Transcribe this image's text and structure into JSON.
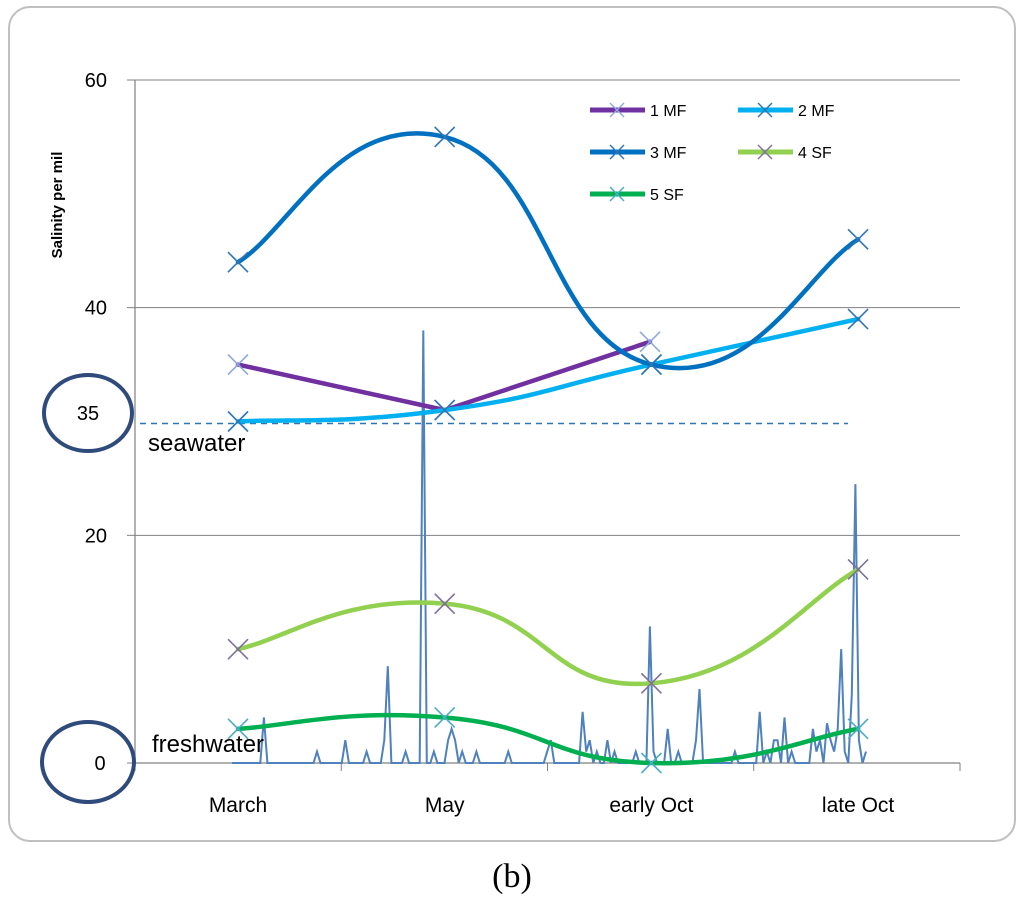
{
  "chart_data": {
    "type": "line",
    "ylabel": "Salinity per mil",
    "xlabel": "",
    "ylim": [
      0,
      60
    ],
    "yticks": [
      0,
      20,
      40,
      60
    ],
    "grid": true,
    "legend_position": "top-right",
    "categories": [
      "March",
      "May",
      "early Oct",
      "late Oct"
    ],
    "series": [
      {
        "name": "1 MF",
        "color": "#7030a0",
        "values": [
          35,
          31,
          37,
          null
        ],
        "smooth": false,
        "marker_color": "#8ea9db"
      },
      {
        "name": "2 MF",
        "color": "#00b0f0",
        "values": [
          30,
          31,
          35,
          39
        ],
        "smooth": true,
        "marker_color": "#2e75b6"
      },
      {
        "name": "3 MF",
        "color": "#0070c0",
        "values": [
          44,
          55,
          35,
          46
        ],
        "smooth": true,
        "marker_color": "#2e75b6"
      },
      {
        "name": "4 SF",
        "color": "#92d050",
        "values": [
          10,
          14,
          7,
          17
        ],
        "smooth": true,
        "marker_color": "#7f6f9f"
      },
      {
        "name": "5 SF",
        "color": "#00b050",
        "values": [
          3,
          4,
          0,
          3
        ],
        "smooth": true,
        "marker_color": "#4bacc6"
      }
    ],
    "background_series": {
      "name": "",
      "color": "#4f81bd",
      "description_values": [
        0,
        0,
        0,
        0,
        0,
        0,
        0,
        0,
        0,
        4,
        0,
        0,
        0,
        0,
        0,
        0,
        0,
        0,
        0,
        0,
        0,
        0,
        0,
        0,
        1,
        0,
        0,
        0,
        0,
        0,
        0,
        0,
        2,
        0,
        0,
        0,
        0,
        0,
        1,
        0,
        0,
        0,
        0,
        2,
        8.5,
        0,
        0,
        0,
        0,
        1,
        0,
        0,
        0,
        0,
        38,
        0,
        0,
        1,
        0,
        0,
        0,
        2,
        3,
        2,
        0,
        1,
        0,
        0,
        0,
        1,
        0,
        0,
        0,
        0,
        0,
        0,
        0,
        0,
        1,
        0,
        0,
        0,
        0,
        0,
        0,
        0,
        0,
        0,
        0,
        1,
        2,
        0,
        0,
        0,
        0,
        0,
        0,
        0,
        0,
        4.5,
        1,
        2,
        0,
        1,
        0,
        0,
        2,
        0,
        1,
        0,
        0,
        0,
        0,
        0,
        1,
        0,
        0,
        0,
        12,
        1,
        0,
        0,
        0,
        3,
        0,
        0,
        1,
        0,
        0,
        0,
        0,
        2,
        6.5,
        0,
        0,
        0,
        0,
        0,
        0,
        0,
        0,
        0,
        1,
        0,
        0,
        0,
        0,
        0,
        0,
        4.5,
        0,
        1,
        0,
        2,
        2,
        0,
        4,
        0,
        1,
        0,
        0,
        0,
        0,
        0,
        3,
        1,
        2,
        0,
        3.5,
        2,
        1,
        3,
        10,
        1,
        0,
        6,
        24.5,
        2,
        0,
        1
      ]
    },
    "annotations": {
      "reference_line_value": 30,
      "seawater_label": "seawater",
      "freshwater_label": "freshwater",
      "circled_35": "35",
      "circled_0": "0"
    },
    "caption": "(b)"
  }
}
